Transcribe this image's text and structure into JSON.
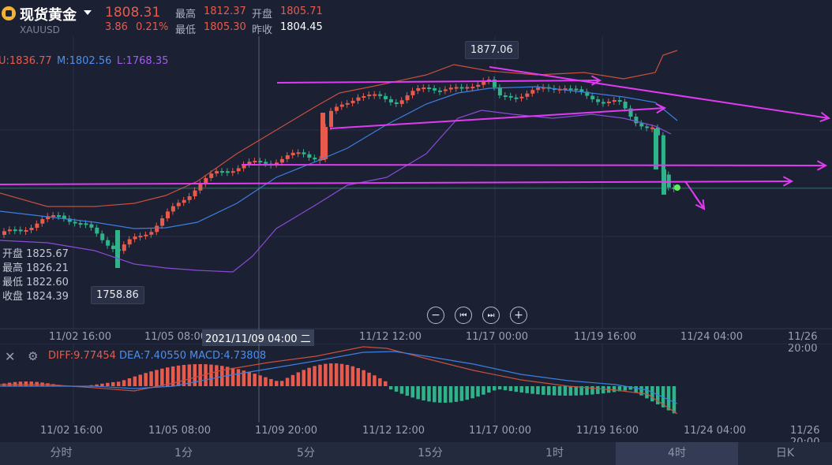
{
  "header": {
    "title": "现货黄金",
    "symbol": "XAUUSD",
    "price": "1808.31",
    "change": "3.86",
    "change_pct": "0.21%",
    "high_label": "最高",
    "high": "1812.37",
    "open_label": "开盘",
    "open": "1805.71",
    "low_label": "最低",
    "low": "1805.30",
    "prev_close_label": "昨收",
    "prev_close": "1804.45"
  },
  "bollinger": {
    "upper": "U:1836.77",
    "middle": "M:1802.56",
    "lower": "L:1768.35"
  },
  "ohlc_panel": {
    "open": "开盘 1825.67",
    "high": "最高 1826.21",
    "low": "最低 1822.60",
    "close": "收盘 1824.39"
  },
  "price_tags": {
    "peak": "1877.06",
    "trough": "1758.86"
  },
  "controls": {
    "zoom_out": "−",
    "prev": "⏮",
    "next": "⏭",
    "zoom_in": "+"
  },
  "x_axis": [
    "11/02 16:00",
    "11/05 08:00",
    "11/09 20:00",
    "11/12 12:00",
    "11/17 00:00",
    "11/19 16:00",
    "11/24 04:00",
    "11/26 20:00"
  ],
  "crosshair_time": "2021/11/09 04:00 二",
  "macd": {
    "close_label": "✕",
    "gear_label": "⚙",
    "diff": "DIFF:9.77454",
    "dea": "DEA:7.40550",
    "macd": "MACD:4.73808"
  },
  "tabs": [
    {
      "label": "分时",
      "active": false
    },
    {
      "label": "1分",
      "active": false
    },
    {
      "label": "5分",
      "active": false
    },
    {
      "label": "15分",
      "active": false
    },
    {
      "label": "1时",
      "active": false
    },
    {
      "label": "4时",
      "active": true
    },
    {
      "label": "日K",
      "active": false
    }
  ],
  "colors": {
    "up": "#e85b4c",
    "down": "#2fb48a",
    "bb_upper": "#c8503d",
    "bb_middle": "#3d7fe0",
    "bb_lower": "#8a4ad8",
    "trend_lines": "#e03bf0",
    "background": "#1b2033"
  }
}
